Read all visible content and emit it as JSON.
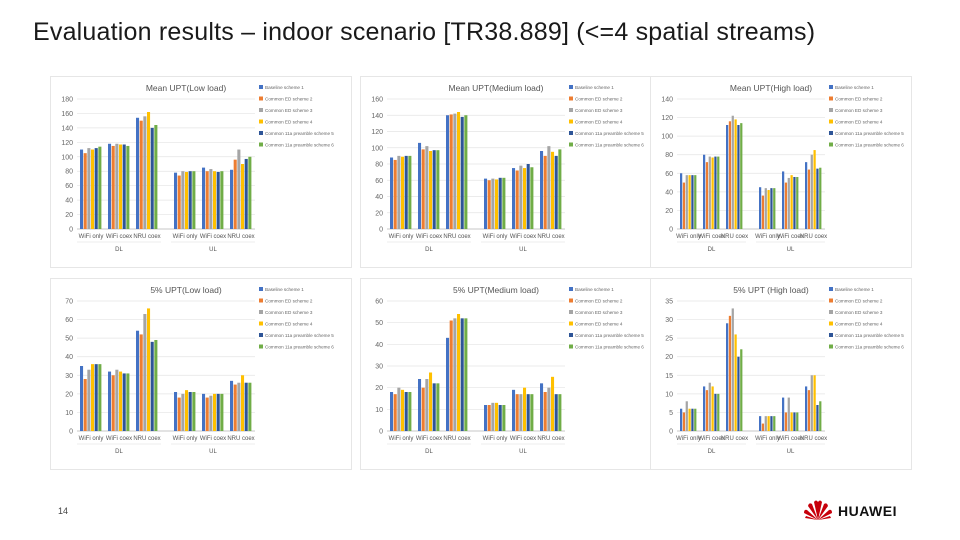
{
  "slide": {
    "title": "Evaluation results – indoor scenario [TR38.889] (<=4 spatial streams)",
    "page_number": "14",
    "brand": "HUAWEI"
  },
  "colors": {
    "series": [
      "#4472c4",
      "#ed7d31",
      "#a5a5a5",
      "#ffc000",
      "#2e5597",
      "#70ad47"
    ],
    "brand_red": "#c7000b"
  },
  "chart_data": [
    {
      "type": "bar",
      "title": "Mean UPT(Low load)",
      "series_names": [
        "Baseline scheme 1",
        "Common ED scheme 2",
        "Common ED scheme 3",
        "Common ED scheme 4",
        "Common 11a preamble scheme 5",
        "Common 11a preamble scheme 6"
      ],
      "categories": [
        "WiFi only",
        "WiFi coex",
        "NRU coex",
        "WiFi only",
        "WiFi coex",
        "NRU coex"
      ],
      "groups": [
        {
          "label": "DL",
          "span": [
            0,
            2
          ]
        },
        {
          "label": "UL",
          "span": [
            3,
            5
          ]
        }
      ],
      "ylim": [
        0,
        180
      ],
      "yticks": [
        0,
        20,
        40,
        60,
        80,
        100,
        120,
        140,
        160,
        180
      ],
      "values": [
        [
          110,
          105,
          112,
          110,
          112,
          114
        ],
        [
          118,
          115,
          118,
          117,
          117,
          115
        ],
        [
          154,
          150,
          156,
          162,
          140,
          144
        ],
        [
          78,
          74,
          80,
          79,
          80,
          80
        ],
        [
          85,
          80,
          83,
          80,
          79,
          80
        ],
        [
          82,
          96,
          110,
          90,
          97,
          100
        ]
      ]
    },
    {
      "type": "bar",
      "title": "Mean UPT(Medium load)",
      "series_names": [
        "Baseline scheme 1",
        "Common ED scheme 2",
        "Common ED scheme 3",
        "Common ED scheme 4",
        "Common 11a preamble scheme 5",
        "Common 11a preamble scheme 6"
      ],
      "categories": [
        "WiFi only",
        "WiFi coex",
        "NRU coex",
        "WiFi only",
        "WiFi coex",
        "NRU coex"
      ],
      "groups": [
        {
          "label": "DL",
          "span": [
            0,
            2
          ]
        },
        {
          "label": "UL",
          "span": [
            3,
            5
          ]
        }
      ],
      "ylim": [
        0,
        160
      ],
      "yticks": [
        0,
        20,
        40,
        60,
        80,
        100,
        120,
        140,
        160
      ],
      "values": [
        [
          88,
          85,
          90,
          89,
          90,
          90
        ],
        [
          106,
          98,
          102,
          96,
          97,
          97
        ],
        [
          140,
          141,
          142,
          144,
          138,
          140
        ],
        [
          62,
          60,
          62,
          61,
          63,
          63
        ],
        [
          75,
          72,
          78,
          75,
          80,
          76
        ],
        [
          96,
          90,
          102,
          95,
          90,
          98
        ]
      ]
    },
    {
      "type": "bar",
      "title": "Mean UPT(High load)",
      "series_names": [
        "Baseline scheme 1",
        "Common ED scheme 2",
        "Common ED scheme 3",
        "Common ED scheme 4",
        "Common 11a preamble scheme 5",
        "Common 11a preamble scheme 6"
      ],
      "categories": [
        "WiFi only",
        "WiFi coex",
        "NRU coex",
        "WiFi only",
        "WiFi coex",
        "NRU coex"
      ],
      "groups": [
        {
          "label": "DL",
          "span": [
            0,
            2
          ]
        },
        {
          "label": "UL",
          "span": [
            3,
            5
          ]
        }
      ],
      "ylim": [
        0,
        140
      ],
      "yticks": [
        0,
        20,
        40,
        60,
        80,
        100,
        120,
        140
      ],
      "values": [
        [
          60,
          50,
          58,
          58,
          58,
          58
        ],
        [
          80,
          72,
          78,
          77,
          78,
          78
        ],
        [
          112,
          116,
          122,
          118,
          112,
          114
        ],
        [
          45,
          36,
          44,
          42,
          44,
          44
        ],
        [
          62,
          50,
          55,
          58,
          56,
          56
        ],
        [
          72,
          64,
          80,
          85,
          65,
          66
        ]
      ]
    },
    {
      "type": "bar",
      "title": "5% UPT(Low load)",
      "series_names": [
        "Baseline scheme 1",
        "Common ED scheme 2",
        "Common ED scheme 3",
        "Common ED scheme 4",
        "Common 11a preamble scheme 5",
        "Common 11a preamble scheme 6"
      ],
      "categories": [
        "WiFi only",
        "WiFi coex",
        "NRU coex",
        "WiFi only",
        "WiFi coex",
        "NRU coex"
      ],
      "groups": [
        {
          "label": "DL",
          "span": [
            0,
            2
          ]
        },
        {
          "label": "UL",
          "span": [
            3,
            5
          ]
        }
      ],
      "ylim": [
        0,
        70
      ],
      "yticks": [
        0,
        10,
        20,
        30,
        40,
        50,
        60,
        70
      ],
      "values": [
        [
          35,
          28,
          33,
          36,
          36,
          36
        ],
        [
          32,
          30,
          33,
          32,
          31,
          31
        ],
        [
          54,
          52,
          63,
          66,
          48,
          49
        ],
        [
          21,
          18,
          20,
          22,
          21,
          21
        ],
        [
          20,
          18,
          19,
          20,
          20,
          20
        ],
        [
          27,
          25,
          26,
          30,
          26,
          26
        ]
      ]
    },
    {
      "type": "bar",
      "title": "5% UPT(Medium load)",
      "series_names": [
        "Baseline scheme 1",
        "Common ED scheme 2",
        "Common ED scheme 3",
        "Common ED scheme 4",
        "Common 11a preamble scheme 5",
        "Common 11a preamble scheme 6"
      ],
      "categories": [
        "WiFi only",
        "WiFi coex",
        "NRU coex",
        "WiFi only",
        "WiFi coex",
        "NRU coex"
      ],
      "groups": [
        {
          "label": "DL",
          "span": [
            0,
            2
          ]
        },
        {
          "label": "UL",
          "span": [
            3,
            5
          ]
        }
      ],
      "ylim": [
        0,
        60
      ],
      "yticks": [
        0,
        10,
        20,
        30,
        40,
        50,
        60
      ],
      "values": [
        [
          18,
          17,
          20,
          19,
          18,
          18
        ],
        [
          24,
          20,
          24,
          27,
          22,
          22
        ],
        [
          43,
          51,
          52,
          54,
          52,
          52
        ],
        [
          12,
          12,
          13,
          13,
          12,
          12
        ],
        [
          19,
          17,
          17,
          20,
          17,
          17
        ],
        [
          22,
          18,
          20,
          25,
          17,
          17
        ]
      ]
    },
    {
      "type": "bar",
      "title": "5% UPT (High load)",
      "series_names": [
        "Baseline scheme 1",
        "Common ED scheme 2",
        "Common ED scheme 3",
        "Common ED scheme 4",
        "Common 11a preamble scheme 5",
        "Common 11a preamble scheme 6"
      ],
      "categories": [
        "WiFi only",
        "WiFi coex",
        "NRU coex",
        "WiFi only",
        "WiFi coex",
        "NRU coex"
      ],
      "groups": [
        {
          "label": "DL",
          "span": [
            0,
            2
          ]
        },
        {
          "label": "UL",
          "span": [
            3,
            5
          ]
        }
      ],
      "ylim": [
        0,
        35
      ],
      "yticks": [
        0,
        5,
        10,
        15,
        20,
        25,
        30,
        35
      ],
      "values": [
        [
          6,
          5,
          8,
          6,
          6,
          6
        ],
        [
          12,
          11,
          13,
          12,
          10,
          10
        ],
        [
          29,
          31,
          33,
          26,
          20,
          22
        ],
        [
          4,
          2,
          4,
          4,
          4,
          4
        ],
        [
          9,
          5,
          9,
          5,
          5,
          5
        ],
        [
          12,
          11,
          15,
          15,
          7,
          8
        ]
      ]
    }
  ]
}
